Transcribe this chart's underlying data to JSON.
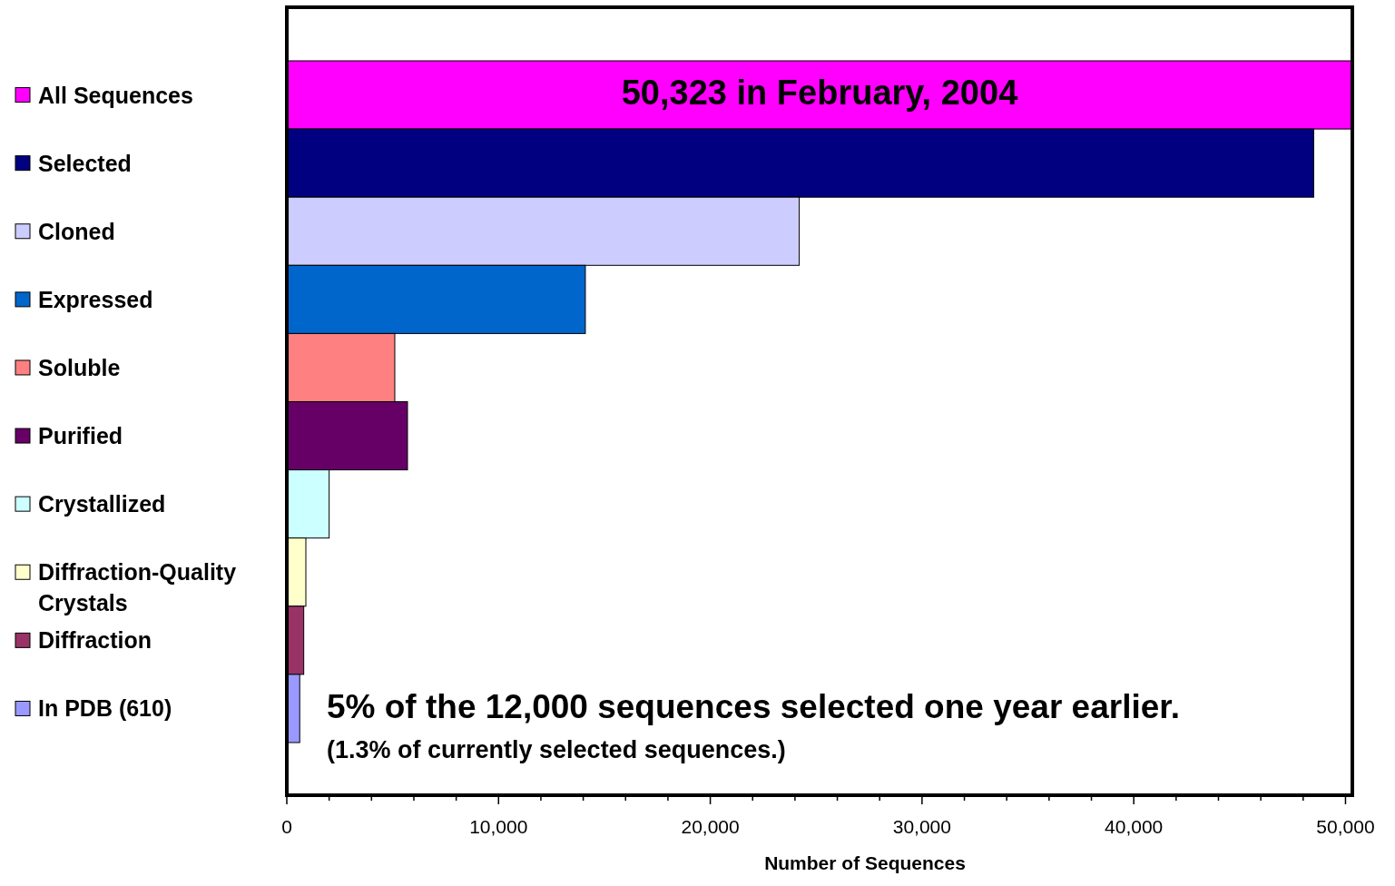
{
  "chart_data": {
    "type": "bar",
    "orientation": "horizontal",
    "xlabel": "Number of Sequences",
    "categories": [
      "All Sequences",
      "Selected",
      "Cloned",
      "Expressed",
      "Soluble",
      "Purified",
      "Crystallized",
      "Diffraction-Quality Crystals",
      "Diffraction",
      "In PDB  (610)"
    ],
    "values": [
      50323,
      48500,
      24200,
      14100,
      5100,
      5700,
      2000,
      900,
      800,
      610
    ],
    "colors": [
      "#ff00ff",
      "#000080",
      "#ccccff",
      "#0066cc",
      "#ff8080",
      "#660066",
      "#ccffff",
      "#ffffcc",
      "#993366",
      "#9999ff"
    ],
    "xlim": [
      0,
      50323
    ],
    "xticks": [
      0,
      {
        "value": 2000,
        "label": null
      },
      {
        "value": 4000,
        "label": null
      },
      {
        "value": 6000,
        "label": null
      },
      {
        "value": 8000,
        "label": null
      },
      {
        "value": 10000,
        "label": "10,000"
      },
      {
        "value": 12000,
        "label": null
      },
      {
        "value": 14000,
        "label": null
      },
      {
        "value": 16000,
        "label": null
      },
      {
        "value": 18000,
        "label": null
      },
      {
        "value": 20000,
        "label": "20,000"
      },
      {
        "value": 22000,
        "label": null
      },
      {
        "value": 24000,
        "label": null
      },
      {
        "value": 26000,
        "label": null
      },
      {
        "value": 28000,
        "label": null
      },
      {
        "value": 30000,
        "label": "30,000"
      },
      {
        "value": 32000,
        "label": null
      },
      {
        "value": 34000,
        "label": null
      },
      {
        "value": 36000,
        "label": null
      },
      {
        "value": 38000,
        "label": null
      },
      {
        "value": 40000,
        "label": "40,000"
      },
      {
        "value": 42000,
        "label": null
      },
      {
        "value": 44000,
        "label": null
      },
      {
        "value": 46000,
        "label": null
      },
      {
        "value": 48000,
        "label": null
      },
      {
        "value": 50000,
        "label": "50,000"
      }
    ],
    "grid": false,
    "annotations": [
      "50,323 in February, 2004",
      "5% of the 12,000 sequences selected one year earlier.",
      "(1.3% of currently selected sequences.)"
    ]
  }
}
